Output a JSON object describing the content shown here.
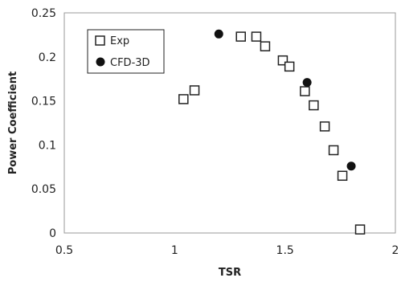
{
  "chart_data": {
    "type": "scatter",
    "title": "",
    "xlabel": "TSR",
    "ylabel": "Power Coefficient",
    "xlim": [
      0.5,
      2
    ],
    "ylim": [
      0,
      0.25
    ],
    "x_ticks": [
      "0.5",
      "1",
      "1.5",
      "2"
    ],
    "y_ticks": [
      "0",
      "0.05",
      "0.1",
      "0.15",
      "0.2",
      "0.25"
    ],
    "grid": false,
    "legend_position": "top-left",
    "series": [
      {
        "name": "Exp",
        "marker": "open-square",
        "color": "#222222",
        "points": [
          {
            "x": 1.04,
            "y": 0.152
          },
          {
            "x": 1.09,
            "y": 0.162
          },
          {
            "x": 1.3,
            "y": 0.223
          },
          {
            "x": 1.37,
            "y": 0.223
          },
          {
            "x": 1.41,
            "y": 0.212
          },
          {
            "x": 1.49,
            "y": 0.196
          },
          {
            "x": 1.52,
            "y": 0.189
          },
          {
            "x": 1.59,
            "y": 0.161
          },
          {
            "x": 1.63,
            "y": 0.145
          },
          {
            "x": 1.68,
            "y": 0.121
          },
          {
            "x": 1.72,
            "y": 0.094
          },
          {
            "x": 1.76,
            "y": 0.065
          },
          {
            "x": 1.84,
            "y": 0.004
          }
        ]
      },
      {
        "name": "CFD-3D",
        "marker": "filled-circle",
        "color": "#111111",
        "points": [
          {
            "x": 1.2,
            "y": 0.226
          },
          {
            "x": 1.6,
            "y": 0.171
          },
          {
            "x": 1.8,
            "y": 0.076
          }
        ]
      }
    ]
  }
}
